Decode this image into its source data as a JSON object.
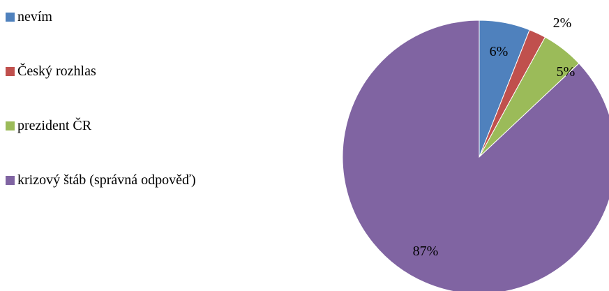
{
  "chart_data": {
    "type": "pie",
    "title": "",
    "categories": [
      "nevím",
      "Český rozhlas",
      "prezident ČR",
      "krizový štáb (správná odpověď)"
    ],
    "values": [
      6,
      2,
      5,
      87
    ],
    "labels": [
      "6%",
      "2%",
      "5%",
      "87%"
    ],
    "colors": [
      "#4F81BD",
      "#C0504D",
      "#9BBB59",
      "#8064A2"
    ],
    "legend_position": "left",
    "start_angle_deg": 0,
    "direction": "clockwise"
  }
}
